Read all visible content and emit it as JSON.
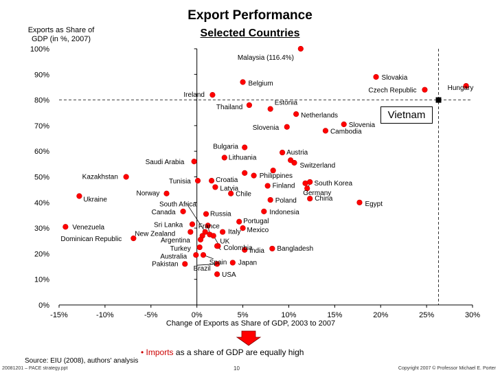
{
  "slide": {
    "title": "Export Performance",
    "subtitle": "Selected Countries",
    "footnote_bullet": "•",
    "footnote_highlight": "Imports",
    "footnote_rest": "as a share of GDP are equally high",
    "source": "Source: EIU (2008), authors' analysis",
    "footer_left": "20081201 – PACE strategy.ppt",
    "page_number": "10",
    "copyright": "Copyright 2007 © Professor Michael E. Porter"
  },
  "colors": {
    "point": "#ff0000",
    "point_stroke": "#cc0000",
    "callout_arrow": "#ff0000",
    "accent_red": "#cc0000",
    "vietnam_marker": "#000000"
  },
  "chart_data": {
    "type": "scatter",
    "title": "Export Performance",
    "subtitle": "Selected Countries",
    "xlabel": "Change of Exports as Share of GDP, 2003 to 2007",
    "ylabel_line1": "Exports as Share of",
    "ylabel_line2": "GDP (in %, 2007)",
    "xlim": [
      -15,
      30
    ],
    "ylim": [
      0,
      100
    ],
    "x_ticks": [
      -15,
      -10,
      -5,
      0,
      5,
      10,
      15,
      20,
      25,
      30
    ],
    "x_tick_labels": [
      "-15%",
      "-10%",
      "-5%",
      "0%",
      "5%",
      "10%",
      "15%",
      "20%",
      "25%",
      "30%"
    ],
    "y_ticks": [
      0,
      10,
      20,
      30,
      40,
      50,
      60,
      70,
      80,
      90,
      100
    ],
    "y_tick_labels": [
      "0%",
      "10%",
      "20%",
      "30%",
      "40%",
      "50%",
      "60%",
      "70%",
      "80%",
      "90%",
      "100%"
    ],
    "reference_lines": {
      "x": 26.3,
      "y": 80
    },
    "highlight": {
      "name": "Vietnam",
      "x": 26.3,
      "y": 80
    },
    "points": [
      {
        "name": "Malaysia (116.4%)",
        "x": 11.3,
        "y": 100,
        "dx": -92,
        "dy": 16
      },
      {
        "name": "Slovakia",
        "x": 19.5,
        "y": 89,
        "dx": 8,
        "dy": 4
      },
      {
        "name": "Czech Republic",
        "x": 24.8,
        "y": 84,
        "dx": -82,
        "dy": 4
      },
      {
        "name": "Hungary",
        "x": 29.3,
        "y": 85.5,
        "dx": -27,
        "dy": 6
      },
      {
        "name": "Belgium",
        "x": 5,
        "y": 87,
        "dx": 8,
        "dy": 5
      },
      {
        "name": "Ireland",
        "x": 1.7,
        "y": 82,
        "dx": -42,
        "dy": 3
      },
      {
        "name": "Thailand",
        "x": 5.7,
        "y": 78,
        "dx": -48,
        "dy": 6
      },
      {
        "name": "Estonia",
        "x": 8,
        "y": 76.5,
        "dx": 6,
        "dy": -6
      },
      {
        "name": "Netherlands",
        "x": 10.8,
        "y": 74.5,
        "dx": 7,
        "dy": 5
      },
      {
        "name": "Slovenia",
        "x": 9.8,
        "y": 69.5,
        "dx": -50,
        "dy": 4
      },
      {
        "name": "Slovenia",
        "x": 16,
        "y": 70.5,
        "dx": 7,
        "dy": 4
      },
      {
        "name": "Cambodia",
        "x": 14,
        "y": 68,
        "dx": 7,
        "dy": 4
      },
      {
        "name": "Bulgaria",
        "x": 5.2,
        "y": 61.5,
        "dx": -46,
        "dy": 2
      },
      {
        "name": "Austria",
        "x": 9.3,
        "y": 59.5,
        "dx": 6,
        "dy": 3
      },
      {
        "name": "Lithuania",
        "x": 3,
        "y": 57.5,
        "dx": 6,
        "dy": 3
      },
      {
        "name": "Saudi Arabia",
        "x": -0.3,
        "y": 56,
        "dx": -71,
        "dy": 4
      },
      {
        "name": "Switzerland",
        "x": 10.6,
        "y": 55.5,
        "dx": 8,
        "dy": 7
      },
      {
        "name": "Philippines",
        "x": 8.3,
        "y": 52.5,
        "dx": -20,
        "dy": 11
      },
      {
        "name": "",
        "x": 10.2,
        "y": 56.5,
        "dx": 0,
        "dy": 0
      },
      {
        "name": "",
        "x": 5.2,
        "y": 51.5,
        "dx": 0,
        "dy": 0
      },
      {
        "name": "",
        "x": 6.2,
        "y": 50.5,
        "dx": 0,
        "dy": 0
      },
      {
        "name": "Kazakhstan",
        "x": -7.7,
        "y": 50,
        "dx": -64,
        "dy": 3
      },
      {
        "name": "Tunisia",
        "x": 0.1,
        "y": 48.5,
        "dx": -42,
        "dy": 4
      },
      {
        "name": "Croatia",
        "x": 1.6,
        "y": 48.5,
        "dx": 6,
        "dy": 2
      },
      {
        "name": "Latvia",
        "x": 2,
        "y": 46,
        "dx": 7,
        "dy": 5
      },
      {
        "name": "Finland",
        "x": 7.7,
        "y": 46.5,
        "dx": 7,
        "dy": 3
      },
      {
        "name": "South Korea",
        "x": 11.8,
        "y": 47.5,
        "dx": 13,
        "dy": 3
      },
      {
        "name": "",
        "x": 12.3,
        "y": 48,
        "dx": 0,
        "dy": 0
      },
      {
        "name": "Germany",
        "x": 12,
        "y": 45.5,
        "dx": 0,
        "dy": 0
      },
      {
        "name": "Chile",
        "x": 3.7,
        "y": 43.5,
        "dx": 7,
        "dy": 4
      },
      {
        "name": "Norway",
        "x": -3.3,
        "y": 43.5,
        "dx": -44,
        "dy": 3
      },
      {
        "name": "Ukraine",
        "x": -12.8,
        "y": 42.5,
        "dx": 6,
        "dy": 8
      },
      {
        "name": "Poland",
        "x": 8,
        "y": 41,
        "dx": 7,
        "dy": 4
      },
      {
        "name": "China",
        "x": 12.3,
        "y": 41.5,
        "dx": 7,
        "dy": 3
      },
      {
        "name": "Egypt",
        "x": 17.7,
        "y": 40,
        "dx": 8,
        "dy": 5
      },
      {
        "name": "Canada",
        "x": -1.5,
        "y": 36.5,
        "dx": -46,
        "dy": 4
      },
      {
        "name": "Russia",
        "x": 1,
        "y": 35.5,
        "dx": 6,
        "dy": 3
      },
      {
        "name": "Indonesia",
        "x": 7.3,
        "y": 36.5,
        "dx": 8,
        "dy": 4
      },
      {
        "name": "Portugal",
        "x": 4.6,
        "y": 32.5,
        "dx": 6,
        "dy": 2
      },
      {
        "name": "Sri Lanka",
        "x": -0.5,
        "y": 31.5,
        "dx": -56,
        "dy": 4
      },
      {
        "name": "France",
        "x": 1.2,
        "y": 31,
        "dx": 0,
        "dy": 0
      },
      {
        "name": "Mexico",
        "x": 5,
        "y": 30,
        "dx": 6,
        "dy": 6
      },
      {
        "name": "Venezuela",
        "x": -14.3,
        "y": 30.5,
        "dx": 10,
        "dy": 4
      },
      {
        "name": "Italy",
        "x": 2.8,
        "y": 28.5,
        "dx": 8,
        "dy": 3
      },
      {
        "name": "New Zealand",
        "x": -0.7,
        "y": 28.5,
        "dx": -81,
        "dy": 6
      },
      {
        "name": "",
        "x": 0.9,
        "y": 28.5,
        "dx": 0,
        "dy": 0
      },
      {
        "name": "",
        "x": 1.4,
        "y": 27.5,
        "dx": 0,
        "dy": 0
      },
      {
        "name": "",
        "x": 1.8,
        "y": 27,
        "dx": 0,
        "dy": 0
      },
      {
        "name": "",
        "x": 0.6,
        "y": 27,
        "dx": 0,
        "dy": 0
      },
      {
        "name": "Dominican Republic",
        "x": -6.9,
        "y": 26,
        "dx": -106,
        "dy": 4
      },
      {
        "name": "Argentina",
        "x": 0.4,
        "y": 25.5,
        "dx": -58,
        "dy": 4
      },
      {
        "name": "UK",
        "x": 2.3,
        "y": 23,
        "dx": 0,
        "dy": 0
      },
      {
        "name": "Colombia",
        "x": 2.2,
        "y": 23,
        "dx": 0,
        "dy": 0
      },
      {
        "name": "Turkey",
        "x": 0.3,
        "y": 22.5,
        "dx": -43,
        "dy": 5
      },
      {
        "name": "India",
        "x": 5.2,
        "y": 21.5,
        "dx": 7,
        "dy": 4
      },
      {
        "name": "Bangladesh",
        "x": 8.2,
        "y": 22,
        "dx": 7,
        "dy": 3
      },
      {
        "name": "Australia",
        "x": -0.1,
        "y": 19.5,
        "dx": -52,
        "dy": 5
      },
      {
        "name": "Spain",
        "x": 0.7,
        "y": 19.5,
        "dx": 0,
        "dy": 0
      },
      {
        "name": "Pakistan",
        "x": -1.3,
        "y": 16,
        "dx": -48,
        "dy": 3
      },
      {
        "name": "Brazil",
        "x": 2.2,
        "y": 16,
        "dx": 0,
        "dy": 0
      },
      {
        "name": "Japan",
        "x": 3.9,
        "y": 16.5,
        "dx": 8,
        "dy": 3
      },
      {
        "name": "USA",
        "x": 2.2,
        "y": 12,
        "dx": 7,
        "dy": 4
      }
    ],
    "pointer_labels": [
      {
        "name": "South Africa",
        "label_x": -1.1,
        "label_y": 39.5,
        "target_x": 0.9,
        "target_y": 28.5
      },
      {
        "name": "France",
        "label_x": 1.2,
        "label_y": 31,
        "target_x": 1.4,
        "target_y": 27.5
      },
      {
        "name": "Germany",
        "label_x": 12,
        "label_y": 44,
        "target_x": 12.3,
        "target_y": 48
      },
      {
        "name": "UK",
        "label_x": 2.3,
        "label_y": 24,
        "target_x": 1.8,
        "target_y": 27
      },
      {
        "name": "Colombia",
        "label_x": 2.6,
        "label_y": 21.5,
        "target_x": 2.2,
        "target_y": 23
      },
      {
        "name": "Spain",
        "label_x": 1.8,
        "label_y": 18,
        "target_x": 0.7,
        "target_y": 19.5
      },
      {
        "name": "Brazil",
        "label_x": 0,
        "label_y": 15.5,
        "target_x": 2.2,
        "target_y": 16
      }
    ]
  }
}
